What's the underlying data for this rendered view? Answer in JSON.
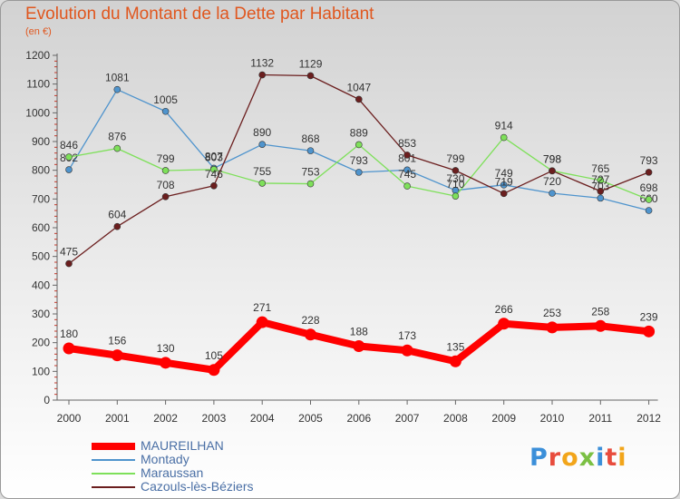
{
  "title": "Evolution du Montant de la Dette par Habitant",
  "subtitle": "(en €)",
  "logo": {
    "text": "Proxiti",
    "letters": [
      {
        "ch": "P",
        "color": "#3b8fd9"
      },
      {
        "ch": "r",
        "color": "#e84c3d"
      },
      {
        "ch": "o",
        "color": "#f2a51a"
      },
      {
        "ch": "x",
        "color": "#7bc043"
      },
      {
        "ch": "i",
        "color": "#3b8fd9"
      },
      {
        "ch": "t",
        "color": "#e84c3d"
      },
      {
        "ch": "i",
        "color": "#f2a51a"
      }
    ]
  },
  "chart_data": {
    "type": "line",
    "title": "Evolution du Montant de la Dette par Habitant",
    "subtitle": "(en €)",
    "x": [
      "2000",
      "2001",
      "2002",
      "2003",
      "2004",
      "2005",
      "2006",
      "2007",
      "2008",
      "2009",
      "2010",
      "2011",
      "2012"
    ],
    "ylim": [
      0,
      1200
    ],
    "yticks": [
      0,
      100,
      200,
      300,
      400,
      500,
      600,
      700,
      800,
      900,
      1000,
      1100,
      1200
    ],
    "grid": false,
    "legend_position": "bottom-left",
    "series": [
      {
        "name": "MAUREILHAN",
        "color": "#ff0000",
        "emphasis": true,
        "values": [
          180,
          156,
          130,
          105,
          271,
          228,
          188,
          173,
          135,
          266,
          253,
          258,
          239
        ]
      },
      {
        "name": "Montady",
        "color": "#4f94cd",
        "values": [
          802,
          1081,
          1005,
          807,
          890,
          868,
          793,
          801,
          730,
          749,
          720,
          703,
          660
        ]
      },
      {
        "name": "Maraussan",
        "color": "#7ee05a",
        "values": [
          846,
          876,
          799,
          803,
          755,
          753,
          889,
          745,
          710,
          914,
          798,
          765,
          698
        ]
      },
      {
        "name": "Cazouls-lès-Béziers",
        "color": "#6b1e1e",
        "values": [
          475,
          604,
          708,
          746,
          1132,
          1129,
          1047,
          853,
          799,
          719,
          798,
          727,
          793
        ]
      }
    ]
  }
}
